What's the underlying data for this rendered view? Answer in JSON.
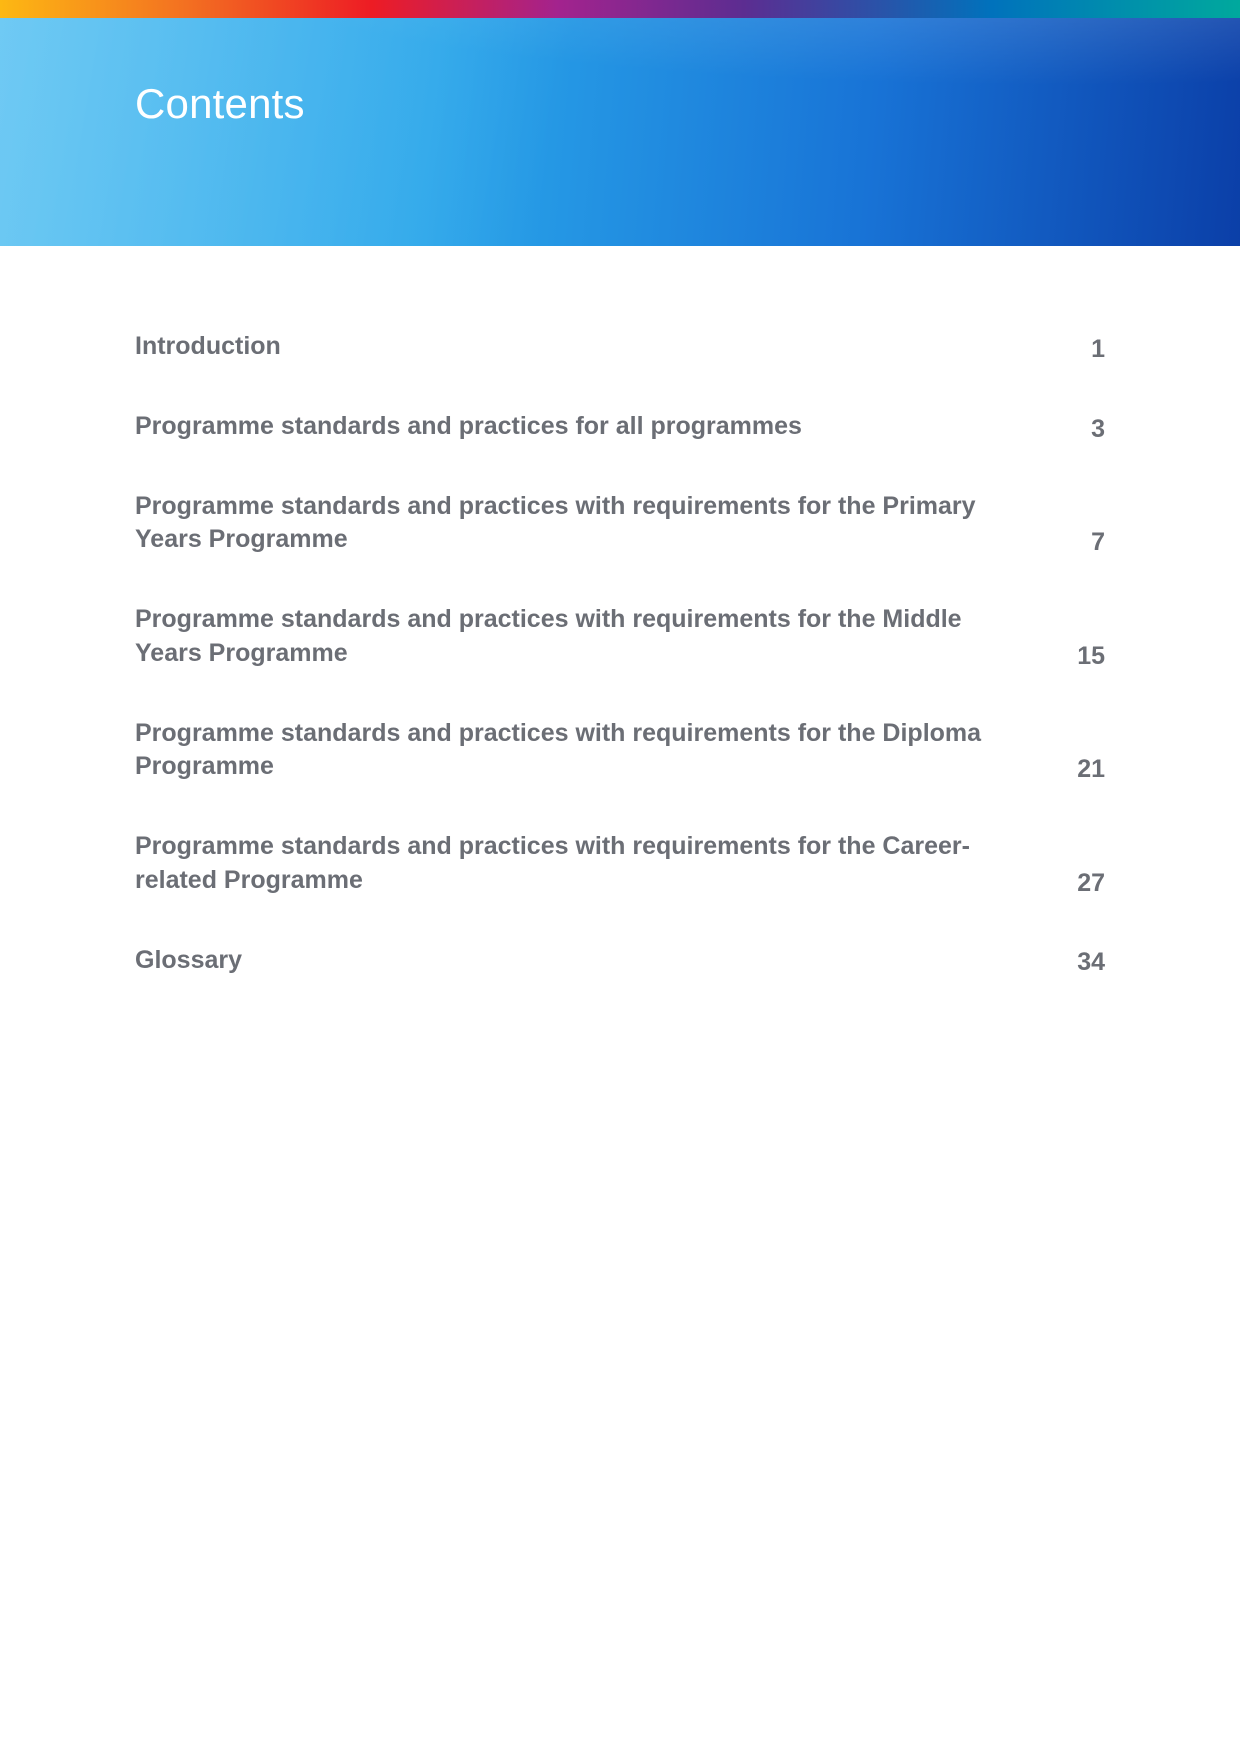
{
  "banner": {
    "title": "Contents",
    "title_color": "#ffffff",
    "title_fontsize": 42,
    "title_fontweight": 300,
    "gradient_colors": [
      "#3fb8f0",
      "#2aa6ea",
      "#1873d6",
      "#0b3fa8"
    ]
  },
  "top_strip": {
    "gradient_colors": [
      "#fdb813",
      "#f37021",
      "#ed1c24",
      "#a3238e",
      "#5c2d91",
      "#0072bc",
      "#00a99d"
    ]
  },
  "toc": {
    "text_color": "#6b6e75",
    "fontsize": 25,
    "fontweight": 700,
    "items": [
      {
        "title": "Introduction",
        "page": "1"
      },
      {
        "title": "Programme standards and practices for all programmes",
        "page": "3"
      },
      {
        "title": "Programme standards and practices with requirements for the Primary Years Programme",
        "page": "7"
      },
      {
        "title": "Programme standards and practices with requirements for the Middle Years Programme",
        "page": "15"
      },
      {
        "title": "Programme standards and practices with requirements for the Diploma Programme",
        "page": "21"
      },
      {
        "title": "Programme standards and practices with requirements for the Career-related Programme",
        "page": "27"
      },
      {
        "title": "Glossary",
        "page": "34"
      }
    ]
  }
}
